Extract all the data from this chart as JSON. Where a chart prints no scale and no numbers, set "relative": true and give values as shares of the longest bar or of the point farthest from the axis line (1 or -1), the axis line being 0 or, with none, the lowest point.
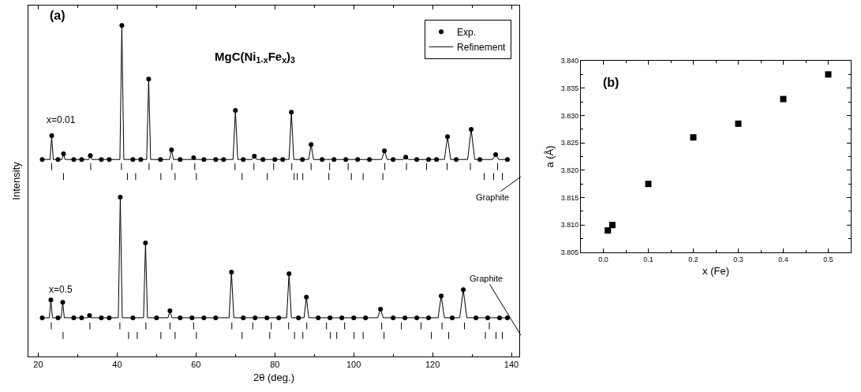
{
  "chart_data": [
    {
      "type": "line",
      "relative": true,
      "xlim": [
        17.5,
        142
      ],
      "xticks": [
        20,
        40,
        60,
        80,
        100,
        120,
        140
      ],
      "xlabel": "2θ (deg.)",
      "ylabel": "Intensity",
      "legend": "top right",
      "tick_labels": "x",
      "annotations": [
        "(a)",
        "MgC(Ni$_{1-x}$Fe$_{x}$)$_{3}$",
        "x=0.01",
        "x=0.5",
        "Graphite",
        "Graphite"
      ],
      "series": [
        {
          "name": "Exp.",
          "type": "scatter",
          "marker": "circle",
          "color": "#000000",
          "x": [
            21,
            23.4,
            25,
            26.4,
            29,
            31,
            33.2,
            36,
            38,
            41.2,
            44,
            46,
            48.0,
            51,
            53.8,
            56,
            59.4,
            62,
            65,
            67,
            70.0,
            72,
            74.8,
            77,
            80,
            82,
            84.2,
            87,
            89.2,
            92,
            95,
            98,
            101,
            104,
            107.8,
            110,
            113.2,
            116,
            119,
            121,
            123.8,
            126,
            129.8,
            132,
            136.0,
            139
          ],
          "values": [
            0.595,
            0.667,
            0.595,
            0.612,
            0.595,
            0.595,
            0.607,
            0.595,
            0.595,
            1.0,
            0.595,
            0.595,
            0.838,
            0.595,
            0.624,
            0.595,
            0.6,
            0.595,
            0.595,
            0.595,
            0.743,
            0.595,
            0.605,
            0.595,
            0.595,
            0.595,
            0.738,
            0.595,
            0.64,
            0.595,
            0.595,
            0.595,
            0.595,
            0.595,
            0.621,
            0.595,
            0.602,
            0.595,
            0.595,
            0.595,
            0.664,
            0.595,
            0.686,
            0.595,
            0.61,
            0.595
          ]
        },
        {
          "name": "Refinement",
          "type": "line",
          "color": "#000000",
          "x": [
            21,
            23.0,
            23.4,
            23.8,
            26.0,
            26.4,
            26.8,
            32.8,
            33.2,
            33.6,
            40.7,
            41.2,
            41.7,
            47.5,
            48.0,
            48.5,
            53.3,
            53.8,
            54.3,
            58.9,
            59.4,
            59.9,
            69.4,
            70.0,
            70.6,
            74.2,
            74.8,
            75.4,
            83.6,
            84.2,
            84.8,
            88.6,
            89.2,
            89.8,
            107.1,
            107.8,
            108.5,
            112.5,
            113.2,
            113.9,
            123.0,
            123.8,
            124.6,
            128.9,
            129.8,
            130.7,
            135.2,
            136.0,
            136.8,
            139
          ],
          "values": [
            0.595,
            0.595,
            0.667,
            0.595,
            0.595,
            0.612,
            0.595,
            0.595,
            0.607,
            0.595,
            0.595,
            1.0,
            0.595,
            0.595,
            0.838,
            0.595,
            0.595,
            0.624,
            0.595,
            0.595,
            0.6,
            0.595,
            0.595,
            0.743,
            0.595,
            0.595,
            0.605,
            0.595,
            0.595,
            0.738,
            0.595,
            0.595,
            0.64,
            0.595,
            0.595,
            0.621,
            0.595,
            0.595,
            0.602,
            0.595,
            0.595,
            0.664,
            0.595,
            0.595,
            0.686,
            0.595,
            0.595,
            0.61,
            0.595,
            0.595
          ]
        },
        {
          "type": "scatter",
          "marker": "circle",
          "color": "#000000",
          "x": [
            21,
            23.2,
            25,
            26.2,
            29,
            31,
            33.0,
            36,
            38,
            40.8,
            44,
            47.2,
            50,
            53.4,
            56,
            59,
            62,
            65,
            69.0,
            72,
            75,
            78,
            81,
            83.6,
            86,
            88.0,
            91,
            94,
            97,
            100,
            103,
            106.8,
            110,
            113,
            116,
            119,
            122.2,
            125,
            127.8,
            131,
            134,
            137,
            139
          ],
          "values": [
            0.117,
            0.171,
            0.117,
            0.164,
            0.117,
            0.117,
            0.124,
            0.117,
            0.117,
            0.481,
            0.117,
            0.343,
            0.117,
            0.138,
            0.117,
            0.117,
            0.117,
            0.117,
            0.255,
            0.117,
            0.117,
            0.117,
            0.117,
            0.25,
            0.117,
            0.179,
            0.117,
            0.117,
            0.117,
            0.117,
            0.117,
            0.143,
            0.117,
            0.117,
            0.117,
            0.117,
            0.183,
            0.117,
            0.202,
            0.117,
            0.117,
            0.117,
            0.117
          ]
        },
        {
          "type": "line",
          "color": "#000000",
          "x": [
            21,
            22.8,
            23.2,
            23.6,
            25.8,
            26.2,
            26.6,
            32.6,
            33.0,
            33.4,
            40.3,
            40.8,
            41.3,
            46.7,
            47.2,
            47.7,
            52.9,
            53.4,
            53.9,
            68.4,
            69.0,
            69.6,
            83.0,
            83.6,
            84.2,
            87.4,
            88.0,
            88.6,
            106.1,
            106.8,
            107.5,
            121.4,
            122.2,
            123.0,
            126.9,
            127.8,
            128.7,
            139
          ],
          "values": [
            0.117,
            0.117,
            0.171,
            0.117,
            0.117,
            0.164,
            0.117,
            0.117,
            0.124,
            0.117,
            0.117,
            0.481,
            0.117,
            0.117,
            0.343,
            0.117,
            0.117,
            0.138,
            0.117,
            0.117,
            0.255,
            0.117,
            0.117,
            0.25,
            0.117,
            0.117,
            0.179,
            0.117,
            0.117,
            0.143,
            0.117,
            0.117,
            0.183,
            0.117,
            0.117,
            0.202,
            0.117,
            0.117
          ]
        },
        {
          "type": "line",
          "color": "#000000",
          "x": [
            23.4,
            23.4
          ],
          "values": [
            0.583,
            0.564
          ]
        },
        {
          "type": "line",
          "color": "#000000",
          "x": [
            33.3,
            33.3
          ],
          "values": [
            0.583,
            0.564
          ]
        },
        {
          "type": "line",
          "color": "#000000",
          "x": [
            41.1,
            41.1
          ],
          "values": [
            0.583,
            0.564
          ]
        },
        {
          "type": "line",
          "color": "#000000",
          "x": [
            48.1,
            48.1
          ],
          "values": [
            0.583,
            0.564
          ]
        },
        {
          "type": "line",
          "color": "#000000",
          "x": [
            53.9,
            53.9
          ],
          "values": [
            0.583,
            0.564
          ]
        },
        {
          "type": "line",
          "color": "#000000",
          "x": [
            59.7,
            59.7
          ],
          "values": [
            0.583,
            0.564
          ]
        },
        {
          "type": "line",
          "color": "#000000",
          "x": [
            69.9,
            69.9
          ],
          "values": [
            0.583,
            0.564
          ]
        },
        {
          "type": "line",
          "color": "#000000",
          "x": [
            74.7,
            74.7
          ],
          "values": [
            0.583,
            0.564
          ]
        },
        {
          "type": "line",
          "color": "#000000",
          "x": [
            79.7,
            79.7
          ],
          "values": [
            0.583,
            0.564
          ]
        },
        {
          "type": "line",
          "color": "#000000",
          "x": [
            84.3,
            84.3
          ],
          "values": [
            0.583,
            0.564
          ]
        },
        {
          "type": "line",
          "color": "#000000",
          "x": [
            89.2,
            89.2
          ],
          "values": [
            0.583,
            0.564
          ]
        },
        {
          "type": "line",
          "color": "#000000",
          "x": [
            93.9,
            93.9
          ],
          "values": [
            0.583,
            0.564
          ]
        },
        {
          "type": "line",
          "color": "#000000",
          "x": [
            98.6,
            98.6
          ],
          "values": [
            0.583,
            0.564
          ]
        },
        {
          "type": "line",
          "color": "#000000",
          "x": [
            107.9,
            107.9
          ],
          "values": [
            0.583,
            0.564
          ]
        },
        {
          "type": "line",
          "color": "#000000",
          "x": [
            113.4,
            113.4
          ],
          "values": [
            0.583,
            0.564
          ]
        },
        {
          "type": "line",
          "color": "#000000",
          "x": [
            118.5,
            118.5
          ],
          "values": [
            0.583,
            0.564
          ]
        },
        {
          "type": "line",
          "color": "#000000",
          "x": [
            123.7,
            123.7
          ],
          "values": [
            0.583,
            0.564
          ]
        },
        {
          "type": "line",
          "color": "#000000",
          "x": [
            129.6,
            129.6
          ],
          "values": [
            0.583,
            0.564
          ]
        },
        {
          "type": "line",
          "color": "#000000",
          "x": [
            136.5,
            136.5
          ],
          "values": [
            0.583,
            0.564
          ]
        },
        {
          "type": "line",
          "color": "#000000",
          "x": [
            26.4,
            26.4
          ],
          "values": [
            0.553,
            0.534
          ]
        },
        {
          "type": "line",
          "color": "#000000",
          "x": [
            42.6,
            42.6
          ],
          "values": [
            0.553,
            0.534
          ]
        },
        {
          "type": "line",
          "color": "#000000",
          "x": [
            44.7,
            44.7
          ],
          "values": [
            0.553,
            0.534
          ]
        },
        {
          "type": "line",
          "color": "#000000",
          "x": [
            51.1,
            51.1
          ],
          "values": [
            0.553,
            0.534
          ]
        },
        {
          "type": "line",
          "color": "#000000",
          "x": [
            54.7,
            54.7
          ],
          "values": [
            0.553,
            0.534
          ]
        },
        {
          "type": "line",
          "color": "#000000",
          "x": [
            60.1,
            60.1
          ],
          "values": [
            0.553,
            0.534
          ]
        },
        {
          "type": "line",
          "color": "#000000",
          "x": [
            71.7,
            71.7
          ],
          "values": [
            0.553,
            0.534
          ]
        },
        {
          "type": "line",
          "color": "#000000",
          "x": [
            78.1,
            78.1
          ],
          "values": [
            0.553,
            0.534
          ]
        },
        {
          "type": "line",
          "color": "#000000",
          "x": [
            84.9,
            84.9
          ],
          "values": [
            0.553,
            0.534
          ]
        },
        {
          "type": "line",
          "color": "#000000",
          "x": [
            85.7,
            85.7
          ],
          "values": [
            0.553,
            0.534
          ]
        },
        {
          "type": "line",
          "color": "#000000",
          "x": [
            87.1,
            87.1
          ],
          "values": [
            0.553,
            0.534
          ]
        },
        {
          "type": "line",
          "color": "#000000",
          "x": [
            93.7,
            93.7
          ],
          "values": [
            0.553,
            0.534
          ]
        },
        {
          "type": "line",
          "color": "#000000",
          "x": [
            99.4,
            99.4
          ],
          "values": [
            0.553,
            0.534
          ]
        },
        {
          "type": "line",
          "color": "#000000",
          "x": [
            102.4,
            102.4
          ],
          "values": [
            0.553,
            0.534
          ]
        },
        {
          "type": "line",
          "color": "#000000",
          "x": [
            107.4,
            107.4
          ],
          "values": [
            0.553,
            0.534
          ]
        },
        {
          "type": "line",
          "color": "#000000",
          "x": [
            133.1,
            133.1
          ],
          "values": [
            0.553,
            0.534
          ]
        },
        {
          "type": "line",
          "color": "#000000",
          "x": [
            135.5,
            135.5
          ],
          "values": [
            0.553,
            0.534
          ]
        },
        {
          "type": "line",
          "color": "#000000",
          "x": [
            137.7,
            137.7
          ],
          "values": [
            0.553,
            0.534
          ]
        },
        {
          "type": "line",
          "color": "#000000",
          "x": [
            23.3,
            23.3
          ],
          "values": [
            0.102,
            0.083
          ]
        },
        {
          "type": "line",
          "color": "#000000",
          "x": [
            33.1,
            33.1
          ],
          "values": [
            0.102,
            0.083
          ]
        },
        {
          "type": "line",
          "color": "#000000",
          "x": [
            40.7,
            40.7
          ],
          "values": [
            0.102,
            0.083
          ]
        },
        {
          "type": "line",
          "color": "#000000",
          "x": [
            47.3,
            47.3
          ],
          "values": [
            0.102,
            0.083
          ]
        },
        {
          "type": "line",
          "color": "#000000",
          "x": [
            53.4,
            53.4
          ],
          "values": [
            0.102,
            0.083
          ]
        },
        {
          "type": "line",
          "color": "#000000",
          "x": [
            59.4,
            59.4
          ],
          "values": [
            0.102,
            0.083
          ]
        },
        {
          "type": "line",
          "color": "#000000",
          "x": [
            69.1,
            69.1
          ],
          "values": [
            0.102,
            0.083
          ]
        },
        {
          "type": "line",
          "color": "#000000",
          "x": [
            74.4,
            74.4
          ],
          "values": [
            0.102,
            0.083
          ]
        },
        {
          "type": "line",
          "color": "#000000",
          "x": [
            79.1,
            79.1
          ],
          "values": [
            0.102,
            0.083
          ]
        },
        {
          "type": "line",
          "color": "#000000",
          "x": [
            83.5,
            83.5
          ],
          "values": [
            0.102,
            0.083
          ]
        },
        {
          "type": "line",
          "color": "#000000",
          "x": [
            88.1,
            88.1
          ],
          "values": [
            0.102,
            0.083
          ]
        },
        {
          "type": "line",
          "color": "#000000",
          "x": [
            93.1,
            93.1
          ],
          "values": [
            0.102,
            0.083
          ]
        },
        {
          "type": "line",
          "color": "#000000",
          "x": [
            97.7,
            97.7
          ],
          "values": [
            0.102,
            0.083
          ]
        },
        {
          "type": "line",
          "color": "#000000",
          "x": [
            107.1,
            107.1
          ],
          "values": [
            0.102,
            0.083
          ]
        },
        {
          "type": "line",
          "color": "#000000",
          "x": [
            112.1,
            112.1
          ],
          "values": [
            0.102,
            0.083
          ]
        },
        {
          "type": "line",
          "color": "#000000",
          "x": [
            117.1,
            117.1
          ],
          "values": [
            0.102,
            0.083
          ]
        },
        {
          "type": "line",
          "color": "#000000",
          "x": [
            122.4,
            122.4
          ],
          "values": [
            0.102,
            0.083
          ]
        },
        {
          "type": "line",
          "color": "#000000",
          "x": [
            128.1,
            128.1
          ],
          "values": [
            0.102,
            0.083
          ]
        },
        {
          "type": "line",
          "color": "#000000",
          "x": [
            134.4,
            134.4
          ],
          "values": [
            0.102,
            0.083
          ]
        },
        {
          "type": "line",
          "color": "#000000",
          "x": [
            26.3,
            26.3
          ],
          "values": [
            0.073,
            0.054
          ]
        },
        {
          "type": "line",
          "color": "#000000",
          "x": [
            42.9,
            42.9
          ],
          "values": [
            0.073,
            0.054
          ]
        },
        {
          "type": "line",
          "color": "#000000",
          "x": [
            45.1,
            45.1
          ],
          "values": [
            0.073,
            0.054
          ]
        },
        {
          "type": "line",
          "color": "#000000",
          "x": [
            51.1,
            51.1
          ],
          "values": [
            0.073,
            0.054
          ]
        },
        {
          "type": "line",
          "color": "#000000",
          "x": [
            54.7,
            54.7
          ],
          "values": [
            0.073,
            0.054
          ]
        },
        {
          "type": "line",
          "color": "#000000",
          "x": [
            60.1,
            60.1
          ],
          "values": [
            0.073,
            0.054
          ]
        },
        {
          "type": "line",
          "color": "#000000",
          "x": [
            71.7,
            71.7
          ],
          "values": [
            0.073,
            0.054
          ]
        },
        {
          "type": "line",
          "color": "#000000",
          "x": [
            78.7,
            78.7
          ],
          "values": [
            0.073,
            0.054
          ]
        },
        {
          "type": "line",
          "color": "#000000",
          "x": [
            85.0,
            85.0
          ],
          "values": [
            0.073,
            0.054
          ]
        },
        {
          "type": "line",
          "color": "#000000",
          "x": [
            87.1,
            87.1
          ],
          "values": [
            0.073,
            0.054
          ]
        },
        {
          "type": "line",
          "color": "#000000",
          "x": [
            94.1,
            94.1
          ],
          "values": [
            0.073,
            0.054
          ]
        },
        {
          "type": "line",
          "color": "#000000",
          "x": [
            95.7,
            95.7
          ],
          "values": [
            0.073,
            0.054
          ]
        },
        {
          "type": "line",
          "color": "#000000",
          "x": [
            100.1,
            100.1
          ],
          "values": [
            0.073,
            0.054
          ]
        },
        {
          "type": "line",
          "color": "#000000",
          "x": [
            102.4,
            102.4
          ],
          "values": [
            0.073,
            0.054
          ]
        },
        {
          "type": "line",
          "color": "#000000",
          "x": [
            107.7,
            107.7
          ],
          "values": [
            0.073,
            0.054
          ]
        },
        {
          "type": "line",
          "color": "#000000",
          "x": [
            119.7,
            119.7
          ],
          "values": [
            0.073,
            0.054
          ]
        },
        {
          "type": "line",
          "color": "#000000",
          "x": [
            124.1,
            124.1
          ],
          "values": [
            0.073,
            0.054
          ]
        },
        {
          "type": "line",
          "color": "#000000",
          "x": [
            133.4,
            133.4
          ],
          "values": [
            0.073,
            0.054
          ]
        },
        {
          "type": "line",
          "color": "#000000",
          "x": [
            136.1,
            136.1
          ],
          "values": [
            0.073,
            0.054
          ]
        },
        {
          "type": "line",
          "color": "#000000",
          "x": [
            137.7,
            137.7
          ],
          "values": [
            0.073,
            0.054
          ]
        }
      ]
    },
    {
      "type": "scatter",
      "x": [
        0.01,
        0.02,
        0.1,
        0.2,
        0.3,
        0.4,
        0.5
      ],
      "values": [
        3.809,
        3.81,
        3.8175,
        3.826,
        3.8285,
        3.833,
        3.8375
      ],
      "color": "#000000",
      "marker": "square",
      "xlim": [
        -0.05,
        0.55
      ],
      "xticks": [
        {
          "value": 0,
          "label": "0.0"
        },
        0.1,
        0.2,
        0.3,
        0.4,
        0.5
      ],
      "ylim": [
        3.805,
        3.84
      ],
      "yticks": [
        3.805,
        {
          "value": 3.81,
          "label": "3.810"
        },
        3.815,
        {
          "value": 3.82,
          "label": "3.820"
        },
        3.825,
        {
          "value": 3.83,
          "label": "3.830"
        },
        3.835,
        {
          "value": 3.84,
          "label": "3.840"
        }
      ],
      "xlabel": "x (Fe)",
      "ylabel": "a (Å)",
      "annotations": [
        "(b)"
      ]
    }
  ]
}
